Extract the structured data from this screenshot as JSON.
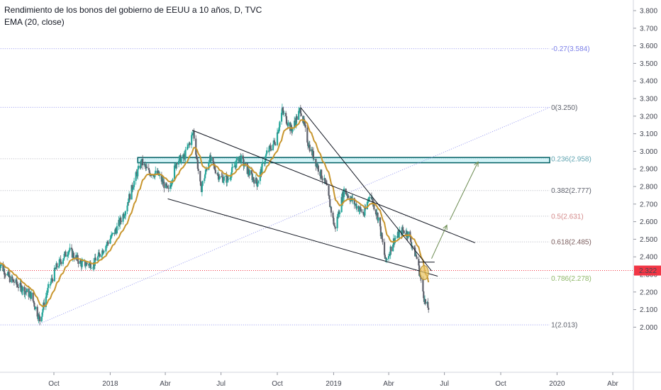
{
  "header": {
    "title": "Rendimiento de los bonos del gobierno de EEUU a 10 años, D, TVC",
    "indicator": "EMA (20, close)"
  },
  "colors": {
    "background": "#ffffff",
    "up_candle": "#26a69a",
    "down_candle": "#5d606b",
    "ema": "#c8962e",
    "fib_line": "#9598f0",
    "price_line": "#f23645",
    "price_badge": "#f23645",
    "support_zone_fill": "#b2ebf2",
    "support_zone_border": "#006064",
    "trend_line": "#131722",
    "arrow": "#6a8a4f",
    "highlight_circle": "#e8c25c"
  },
  "current_price": "2.322",
  "chart_data": {
    "type": "candlestick",
    "title": "Rendimiento de los bonos del gobierno de EEUU a 10 años, D, TVC",
    "y_axis": {
      "ticks": [
        "2.000",
        "2.100",
        "2.200",
        "2.300",
        "2.400",
        "2.500",
        "2.600",
        "2.700",
        "2.800",
        "2.900",
        "3.000",
        "3.100",
        "3.200",
        "3.300",
        "3.400",
        "3.500",
        "3.600",
        "3.700",
        "3.800"
      ],
      "range": [
        1.98,
        3.82
      ],
      "side": "right"
    },
    "x_axis": {
      "ticks": [
        {
          "label": "Oct",
          "date": "2017-10"
        },
        {
          "label": "2018",
          "date": "2018-01"
        },
        {
          "label": "Abr",
          "date": "2018-04"
        },
        {
          "label": "Jul",
          "date": "2018-07"
        },
        {
          "label": "Oct",
          "date": "2018-10"
        },
        {
          "label": "2019",
          "date": "2019-01"
        },
        {
          "label": "Abr",
          "date": "2019-04"
        },
        {
          "label": "Jul",
          "date": "2019-07"
        },
        {
          "label": "Oct",
          "date": "2019-10"
        },
        {
          "label": "2020",
          "date": "2020-01"
        },
        {
          "label": "Abr",
          "date": "2020-04"
        }
      ]
    },
    "price_path": [
      [
        "2017-07-01",
        2.38
      ],
      [
        "2017-07-20",
        2.28
      ],
      [
        "2017-08-10",
        2.22
      ],
      [
        "2017-08-25",
        2.18
      ],
      [
        "2017-09-08",
        2.04
      ],
      [
        "2017-09-20",
        2.2
      ],
      [
        "2017-10-05",
        2.34
      ],
      [
        "2017-10-25",
        2.44
      ],
      [
        "2017-11-15",
        2.36
      ],
      [
        "2017-12-05",
        2.36
      ],
      [
        "2017-12-20",
        2.44
      ],
      [
        "2018-01-10",
        2.55
      ],
      [
        "2018-01-25",
        2.66
      ],
      [
        "2018-02-10",
        2.84
      ],
      [
        "2018-02-21",
        2.94
      ],
      [
        "2018-03-05",
        2.88
      ],
      [
        "2018-03-20",
        2.87
      ],
      [
        "2018-04-06",
        2.77
      ],
      [
        "2018-04-20",
        2.95
      ],
      [
        "2018-05-01",
        2.96
      ],
      [
        "2018-05-17",
        3.11
      ],
      [
        "2018-05-29",
        2.78
      ],
      [
        "2018-06-12",
        2.96
      ],
      [
        "2018-06-29",
        2.85
      ],
      [
        "2018-07-12",
        2.84
      ],
      [
        "2018-07-31",
        2.97
      ],
      [
        "2018-08-15",
        2.88
      ],
      [
        "2018-08-29",
        2.82
      ],
      [
        "2018-09-14",
        2.99
      ],
      [
        "2018-09-28",
        3.06
      ],
      [
        "2018-10-09",
        3.23
      ],
      [
        "2018-10-24",
        3.12
      ],
      [
        "2018-11-08",
        3.24
      ],
      [
        "2018-11-20",
        3.05
      ],
      [
        "2018-12-05",
        2.92
      ],
      [
        "2018-12-20",
        2.8
      ],
      [
        "2019-01-03",
        2.56
      ],
      [
        "2019-01-18",
        2.78
      ],
      [
        "2019-02-05",
        2.7
      ],
      [
        "2019-02-20",
        2.64
      ],
      [
        "2019-03-01",
        2.76
      ],
      [
        "2019-03-15",
        2.62
      ],
      [
        "2019-03-27",
        2.37
      ],
      [
        "2019-04-10",
        2.5
      ],
      [
        "2019-04-24",
        2.55
      ],
      [
        "2019-05-03",
        2.53
      ],
      [
        "2019-05-17",
        2.39
      ],
      [
        "2019-05-31",
        2.13
      ],
      [
        "2019-06-05",
        2.11
      ]
    ],
    "ema_period": 20,
    "fibonacci_retracement": [
      {
        "ratio": "-0.27",
        "value": 3.584,
        "label": "-0.27(3.584)",
        "color": "#7b7fe8"
      },
      {
        "ratio": "0",
        "value": 3.25,
        "label": "0(3.250)",
        "color": "#5d606b"
      },
      {
        "ratio": "0.236",
        "value": 2.958,
        "label": "0.236(2.958)",
        "color": "#5ea3b0"
      },
      {
        "ratio": "0.382",
        "value": 2.777,
        "label": "0.382(2.777)",
        "color": "#5d606b"
      },
      {
        "ratio": "0.5",
        "value": 2.631,
        "label": "0.5(2.631)",
        "color": "#d48a8a"
      },
      {
        "ratio": "0.618",
        "value": 2.485,
        "label": "0.618(2.485)",
        "color": "#7a5c5c"
      },
      {
        "ratio": "0.786",
        "value": 2.278,
        "label": "0.786(2.278)",
        "color": "#8fb86a"
      },
      {
        "ratio": "1",
        "value": 2.013,
        "label": "1(2.013)",
        "color": "#5d606b"
      }
    ],
    "fib_start": "2017-06-15",
    "fib_end": "2019-12-20",
    "support_zone": {
      "from": "2018-02-15",
      "to": "2019-12-20",
      "low": 2.935,
      "high": 2.965
    },
    "horizontal_price_line": 2.322,
    "drawings": {
      "channel_upper": [
        [
          "2018-05-15",
          3.12
        ],
        [
          "2019-08-20",
          2.48
        ]
      ],
      "channel_lower": [
        [
          "2018-04-05",
          2.73
        ],
        [
          "2019-06-20",
          2.29
        ]
      ],
      "trend_down": [
        [
          "2018-11-08",
          3.25
        ],
        [
          "2019-06-10",
          2.32
        ]
      ],
      "diagonal_rise": [
        [
          "2017-09-08",
          2.02
        ],
        [
          "2019-12-20",
          3.25
        ]
      ],
      "short_horizontal": [
        [
          "2019-05-20",
          2.37
        ],
        [
          "2019-06-15",
          2.37
        ]
      ],
      "arrow_1": [
        [
          "2019-06-10",
          2.39
        ],
        [
          "2019-07-05",
          2.58
        ]
      ],
      "arrow_2": [
        [
          "2019-07-10",
          2.61
        ],
        [
          "2019-08-25",
          2.94
        ]
      ],
      "highlight_at": [
        "2019-05-29",
        2.31
      ]
    },
    "grid": false,
    "legend": "top-left"
  }
}
